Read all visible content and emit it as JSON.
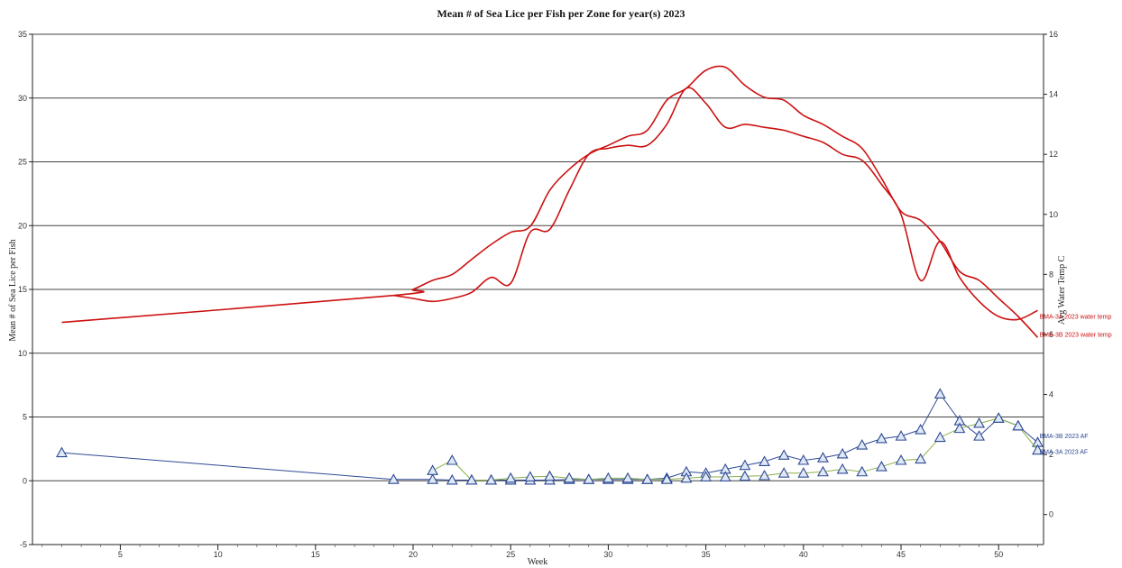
{
  "chart_data": {
    "type": "line",
    "title": "Mean # of Sea Lice per Fish per Zone for year(s) 2023",
    "xlabel": "Week",
    "ylabel": "Mean # of Sea Lice per Fish",
    "y2label": "Avg Water Temp C",
    "xlim": [
      0.5,
      52.3
    ],
    "ylim": [
      -5,
      35
    ],
    "y2lim": [
      -1,
      16
    ],
    "xticks": [
      5,
      10,
      15,
      20,
      25,
      30,
      35,
      40,
      45,
      50
    ],
    "yticks": [
      -5,
      0,
      5,
      10,
      15,
      20,
      25,
      30,
      35
    ],
    "y2ticks": [
      0,
      2,
      4,
      6,
      8,
      10,
      12,
      14,
      16
    ],
    "grid": {
      "horizontal": true,
      "vertical": false
    },
    "legend": "end-of-line labels at right",
    "series": [
      {
        "name": "BMA-3B 2023 water temp",
        "axis": "right",
        "color": "#cc1111",
        "marker": "none",
        "x": [
          2,
          19,
          20,
          21,
          22,
          23,
          24,
          25,
          26,
          27,
          28,
          29,
          30,
          31,
          32,
          33,
          34,
          35,
          36,
          37,
          38,
          39,
          40,
          41,
          42,
          43,
          44,
          45,
          46,
          47,
          48,
          49,
          50,
          51,
          52
        ],
        "y": [
          6.4,
          7.3,
          7.5,
          7.8,
          8.0,
          8.5,
          9.0,
          9.4,
          9.6,
          10.8,
          11.5,
          12.0,
          12.3,
          12.6,
          12.8,
          13.8,
          14.2,
          14.8,
          14.9,
          14.3,
          13.9,
          13.8,
          13.3,
          13.0,
          12.6,
          12.2,
          11.2,
          10.1,
          9.8,
          9.1,
          8.1,
          7.8,
          7.2,
          6.6,
          5.9
        ]
      },
      {
        "name": "BMA-3A 2023 water temp",
        "axis": "right",
        "color": "#cc1111",
        "marker": "none",
        "x": [
          19,
          20,
          21,
          22,
          23,
          24,
          25,
          26,
          27,
          28,
          29,
          30,
          31,
          32,
          33,
          34,
          35,
          36,
          37,
          38,
          39,
          40,
          41,
          42,
          43,
          44,
          45,
          46,
          47,
          48,
          49,
          50,
          51,
          52
        ],
        "y": [
          7.3,
          7.2,
          7.1,
          7.2,
          7.4,
          7.9,
          7.7,
          9.4,
          9.5,
          10.8,
          12.0,
          12.2,
          12.3,
          12.3,
          13.0,
          14.2,
          13.7,
          12.9,
          13.0,
          12.9,
          12.8,
          12.6,
          12.4,
          12.0,
          11.8,
          11.0,
          10.0,
          7.8,
          9.1,
          7.9,
          7.1,
          6.6,
          6.5,
          6.8
        ]
      },
      {
        "name": "BMA-3B 2023 AF",
        "axis": "left",
        "color": "#2e4a94",
        "marker": "triangle",
        "x": [
          2,
          19,
          21,
          22,
          23,
          24,
          25,
          26,
          27,
          28,
          29,
          30,
          31,
          32,
          33,
          34,
          35,
          36,
          37,
          38,
          39,
          40,
          41,
          42,
          43,
          44,
          45,
          46,
          47,
          48,
          49,
          50,
          51,
          52
        ],
        "y": [
          2.2,
          0.1,
          0.1,
          0.05,
          0.05,
          0.05,
          0.05,
          0.05,
          0.05,
          0.1,
          0.1,
          0.1,
          0.1,
          0.1,
          0.2,
          0.7,
          0.6,
          0.9,
          1.2,
          1.5,
          2.0,
          1.6,
          1.8,
          2.1,
          2.8,
          3.3,
          3.5,
          4.0,
          6.8,
          4.7,
          3.5,
          4.9,
          4.3,
          3.0
        ]
      },
      {
        "name": "BMA-3A 2023 AF",
        "axis": "left",
        "color": "#8bb04a",
        "marker": "triangle",
        "x": [
          21,
          22,
          23,
          24,
          25,
          26,
          27,
          28,
          29,
          30,
          31,
          32,
          33,
          34,
          35,
          36,
          37,
          38,
          39,
          40,
          41,
          42,
          43,
          44,
          45,
          46,
          47,
          48,
          49,
          50,
          51,
          52
        ],
        "y": [
          0.8,
          1.6,
          0.05,
          0.05,
          0.2,
          0.3,
          0.35,
          0.2,
          0.1,
          0.2,
          0.2,
          0.1,
          0.1,
          0.2,
          0.3,
          0.3,
          0.35,
          0.4,
          0.6,
          0.6,
          0.7,
          0.9,
          0.7,
          1.1,
          1.6,
          1.7,
          3.4,
          4.1,
          4.5,
          4.9,
          4.3,
          2.4
        ]
      }
    ]
  }
}
